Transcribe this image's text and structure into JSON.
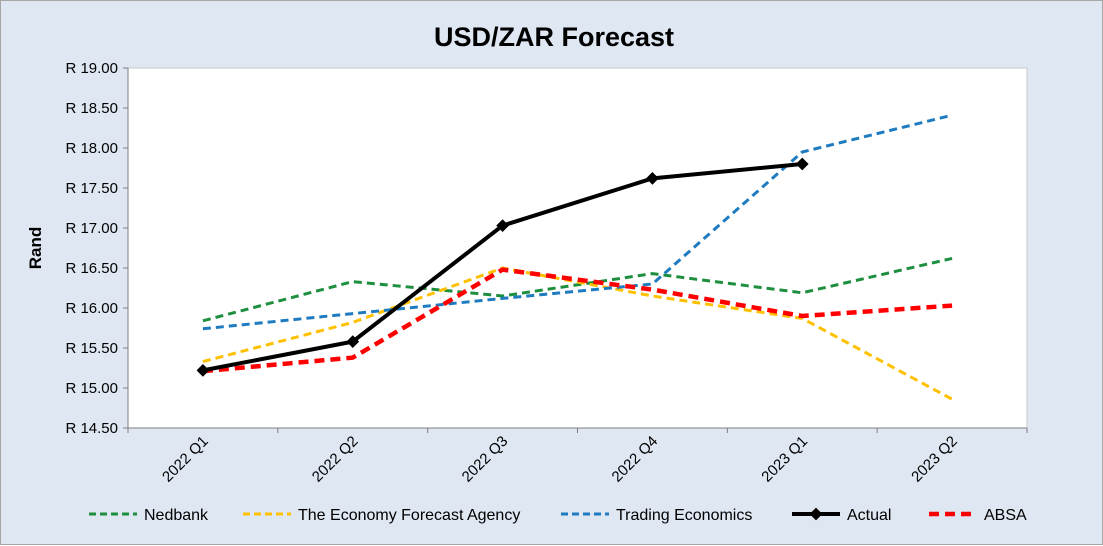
{
  "chart_data": {
    "type": "line",
    "title": "USD/ZAR Forecast",
    "xlabel": "",
    "ylabel": "Rand",
    "categories": [
      "2022 Q1",
      "2022 Q2",
      "2022 Q3",
      "2022 Q4",
      "2023 Q1",
      "2023 Q2"
    ],
    "ylim": [
      14.5,
      19.0
    ],
    "yticks": [
      "R 14.50",
      "R 15.00",
      "R 15.50",
      "R 16.00",
      "R 16.50",
      "R 17.00",
      "R 17.50",
      "R 18.00",
      "R 18.50",
      "R 19.00"
    ],
    "grid": false,
    "legend_position": "bottom",
    "series": [
      {
        "name": "Nedbank",
        "color": "#1e8f3e",
        "style": "dashed",
        "values": [
          15.84,
          16.33,
          16.15,
          16.43,
          16.19,
          16.62
        ]
      },
      {
        "name": "The Economy Forecast Agency",
        "color": "#ffc000",
        "style": "dashed",
        "values": [
          15.33,
          15.82,
          16.5,
          16.15,
          15.87,
          14.86
        ]
      },
      {
        "name": "Trading Economics",
        "color": "#1f7bc0",
        "style": "dashed",
        "values": [
          15.74,
          15.93,
          16.12,
          16.3,
          17.95,
          18.41
        ]
      },
      {
        "name": "Actual",
        "color": "#000000",
        "style": "solid-marker",
        "values": [
          15.22,
          15.58,
          17.03,
          17.62,
          17.8,
          null
        ]
      },
      {
        "name": "ABSA",
        "color": "#ff0000",
        "style": "thick-dashed",
        "values": [
          15.21,
          15.38,
          16.48,
          16.23,
          15.9,
          16.03
        ]
      }
    ]
  }
}
